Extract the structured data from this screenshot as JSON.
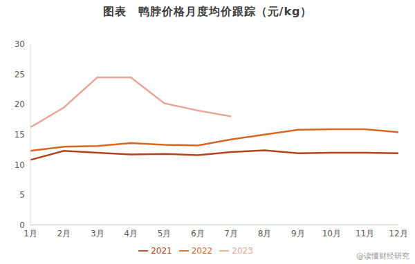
{
  "chart_data": {
    "type": "line",
    "title": "图表　鸭脖价格月度均价跟踪（元/kg）",
    "categories": [
      "1月",
      "2月",
      "3月",
      "4月",
      "5月",
      "6月",
      "7月",
      "8月",
      "9月",
      "10月",
      "11月",
      "12月"
    ],
    "series": [
      {
        "name": "2021",
        "color": "#b5431a",
        "values": [
          10.8,
          12.3,
          12.0,
          11.7,
          11.8,
          11.6,
          12.1,
          12.4,
          11.9,
          12.0,
          12.0,
          11.9
        ]
      },
      {
        "name": "2022",
        "color": "#d9661f",
        "values": [
          12.3,
          13.0,
          13.1,
          13.6,
          13.3,
          13.2,
          14.2,
          15.0,
          15.8,
          15.9,
          15.9,
          15.4
        ]
      },
      {
        "name": "2023",
        "color": "#e8a595",
        "values": [
          16.2,
          19.5,
          24.5,
          24.5,
          20.2,
          19.0,
          18.0,
          null,
          null,
          null,
          null,
          null
        ]
      }
    ],
    "ylim": [
      0,
      30
    ],
    "yticks": [
      0,
      5,
      10,
      15,
      20,
      25,
      30
    ],
    "grid": false,
    "legend": "bottom",
    "annotations": [
      "@读懂财经研究"
    ]
  }
}
